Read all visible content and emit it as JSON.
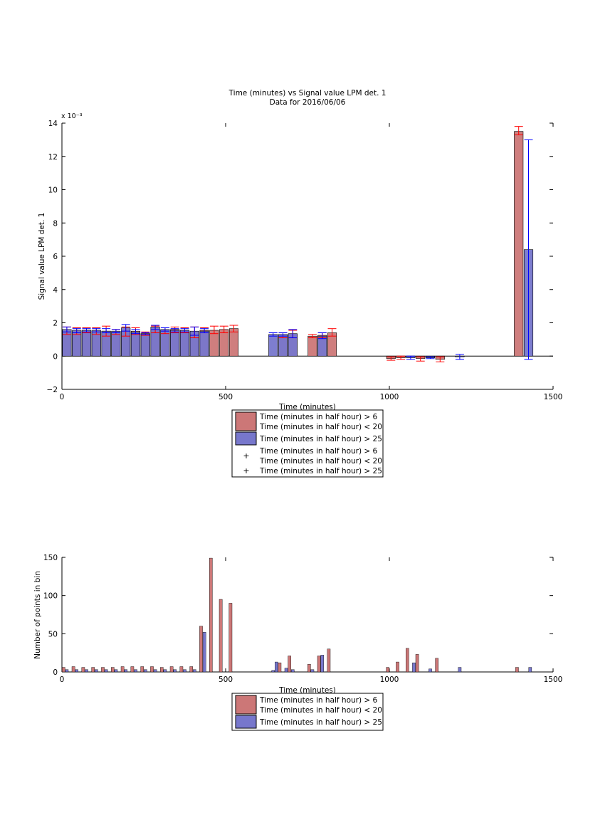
{
  "chart_data": [
    {
      "type": "bar",
      "title": "Time (minutes) vs Signal value LPM det. 1",
      "subtitle": "Data for 2016/06/06",
      "xlabel": "Time (minutes)",
      "ylabel": "Signal value LPM det. 1",
      "y_multiplier": "x 10⁻³",
      "xlim": [
        0,
        1500
      ],
      "ylim": [
        -2,
        14
      ],
      "x_ticks": [
        "0",
        "500",
        "1000",
        "1500"
      ],
      "y_ticks": [
        "−2",
        "0",
        "2",
        "4",
        "6",
        "8",
        "10",
        "12",
        "14"
      ],
      "x_tick_values": [
        0,
        500,
        1000,
        1500
      ],
      "y_tick_values": [
        -2,
        0,
        2,
        4,
        6,
        8,
        10,
        12,
        14
      ],
      "grid": false,
      "legend_position": "bottom-center",
      "legend": [
        {
          "kind": "swatch",
          "color": "#cc7777",
          "lines": [
            "Time (minutes in half hour) > 6",
            "Time (minutes in half hour) < 20"
          ]
        },
        {
          "kind": "swatch",
          "color": "#7777cc",
          "lines": [
            "Time (minutes in half hour) > 25"
          ]
        },
        {
          "kind": "marker",
          "color": "#ff0000",
          "lines": [
            "Time (minutes in half hour) > 6",
            "Time (minutes in half hour) < 20"
          ]
        },
        {
          "kind": "marker",
          "color": "#0000ff",
          "lines": [
            "Time (minutes in half hour) > 25"
          ]
        }
      ],
      "series": [
        {
          "name": "Time (minutes in half hour) > 6 Time (minutes in half hour) < 20",
          "color": "#cc7777",
          "error_color": "#ff0000",
          "points": [
            {
              "x": 15,
              "y": 1.5,
              "lo": 1.3,
              "hi": 1.75
            },
            {
              "x": 45,
              "y": 1.5,
              "lo": 1.3,
              "hi": 1.7
            },
            {
              "x": 75,
              "y": 1.55,
              "lo": 1.4,
              "hi": 1.7
            },
            {
              "x": 105,
              "y": 1.5,
              "lo": 1.3,
              "hi": 1.7
            },
            {
              "x": 135,
              "y": 1.5,
              "lo": 1.2,
              "hi": 1.8
            },
            {
              "x": 165,
              "y": 1.45,
              "lo": 1.3,
              "hi": 1.6
            },
            {
              "x": 195,
              "y": 1.5,
              "lo": 1.2,
              "hi": 1.75
            },
            {
              "x": 225,
              "y": 1.5,
              "lo": 1.3,
              "hi": 1.7
            },
            {
              "x": 255,
              "y": 1.35,
              "lo": 1.25,
              "hi": 1.45
            },
            {
              "x": 285,
              "y": 1.6,
              "lo": 1.4,
              "hi": 1.8
            },
            {
              "x": 315,
              "y": 1.55,
              "lo": 1.35,
              "hi": 1.7
            },
            {
              "x": 345,
              "y": 1.6,
              "lo": 1.4,
              "hi": 1.75
            },
            {
              "x": 375,
              "y": 1.55,
              "lo": 1.4,
              "hi": 1.7
            },
            {
              "x": 405,
              "y": 1.45,
              "lo": 1.1,
              "hi": 1.75
            },
            {
              "x": 435,
              "y": 1.55,
              "lo": 1.4,
              "hi": 1.7
            },
            {
              "x": 465,
              "y": 1.55,
              "lo": 1.35,
              "hi": 1.8
            },
            {
              "x": 495,
              "y": 1.6,
              "lo": 1.4,
              "hi": 1.8
            },
            {
              "x": 525,
              "y": 1.65,
              "lo": 1.45,
              "hi": 1.85
            },
            {
              "x": 675,
              "y": 1.25,
              "lo": 1.1,
              "hi": 1.4
            },
            {
              "x": 705,
              "y": 1.3,
              "lo": 1.1,
              "hi": 1.55
            },
            {
              "x": 765,
              "y": 1.2,
              "lo": 1.1,
              "hi": 1.3
            },
            {
              "x": 795,
              "y": 1.25,
              "lo": 1.1,
              "hi": 1.4
            },
            {
              "x": 825,
              "y": 1.4,
              "lo": 1.2,
              "hi": 1.65
            },
            {
              "x": 1005,
              "y": -0.15,
              "lo": -0.25,
              "hi": -0.05
            },
            {
              "x": 1035,
              "y": -0.1,
              "lo": -0.2,
              "hi": 0.0
            },
            {
              "x": 1095,
              "y": -0.15,
              "lo": -0.3,
              "hi": -0.05
            },
            {
              "x": 1155,
              "y": -0.2,
              "lo": -0.35,
              "hi": -0.05
            },
            {
              "x": 1395,
              "y": 13.5,
              "lo": 13.3,
              "hi": 13.8
            }
          ]
        },
        {
          "name": "Time (minutes in half hour) > 25",
          "color": "#7777cc",
          "error_color": "#0000ff",
          "points": [
            {
              "x": 15,
              "y": 1.6,
              "lo": 1.45,
              "hi": 1.75
            },
            {
              "x": 45,
              "y": 1.55,
              "lo": 1.4,
              "hi": 1.65
            },
            {
              "x": 75,
              "y": 1.55,
              "lo": 1.45,
              "hi": 1.65
            },
            {
              "x": 105,
              "y": 1.55,
              "lo": 1.45,
              "hi": 1.65
            },
            {
              "x": 135,
              "y": 1.5,
              "lo": 1.4,
              "hi": 1.65
            },
            {
              "x": 165,
              "y": 1.5,
              "lo": 1.4,
              "hi": 1.6
            },
            {
              "x": 195,
              "y": 1.7,
              "lo": 1.5,
              "hi": 1.9
            },
            {
              "x": 225,
              "y": 1.45,
              "lo": 1.35,
              "hi": 1.6
            },
            {
              "x": 255,
              "y": 1.35,
              "lo": 1.3,
              "hi": 1.4
            },
            {
              "x": 285,
              "y": 1.75,
              "lo": 1.6,
              "hi": 1.85
            },
            {
              "x": 315,
              "y": 1.6,
              "lo": 1.5,
              "hi": 1.7
            },
            {
              "x": 345,
              "y": 1.55,
              "lo": 1.45,
              "hi": 1.65
            },
            {
              "x": 375,
              "y": 1.55,
              "lo": 1.45,
              "hi": 1.65
            },
            {
              "x": 405,
              "y": 1.5,
              "lo": 1.25,
              "hi": 1.75
            },
            {
              "x": 435,
              "y": 1.5,
              "lo": 1.4,
              "hi": 1.65
            },
            {
              "x": 645,
              "y": 1.3,
              "lo": 1.2,
              "hi": 1.4
            },
            {
              "x": 675,
              "y": 1.3,
              "lo": 1.2,
              "hi": 1.4
            },
            {
              "x": 705,
              "y": 1.35,
              "lo": 1.1,
              "hi": 1.6
            },
            {
              "x": 795,
              "y": 1.2,
              "lo": 1.05,
              "hi": 1.4
            },
            {
              "x": 1065,
              "y": -0.1,
              "lo": -0.2,
              "hi": 0.0
            },
            {
              "x": 1125,
              "y": -0.1,
              "lo": -0.15,
              "hi": -0.05
            },
            {
              "x": 1215,
              "y": -0.05,
              "lo": -0.2,
              "hi": 0.1
            },
            {
              "x": 1425,
              "y": 6.4,
              "lo": -0.2,
              "hi": 13.0
            }
          ]
        }
      ]
    },
    {
      "type": "bar",
      "xlabel": "Time (minutes)",
      "ylabel": "Number of points in bin",
      "xlim": [
        0,
        1500
      ],
      "ylim": [
        0,
        150
      ],
      "x_ticks": [
        "0",
        "500",
        "1000",
        "1500"
      ],
      "y_ticks": [
        "0",
        "50",
        "100",
        "150"
      ],
      "x_tick_values": [
        0,
        500,
        1000,
        1500
      ],
      "y_tick_values": [
        0,
        50,
        100,
        150
      ],
      "grid": false,
      "legend_position": "bottom-center",
      "legend": [
        {
          "kind": "swatch",
          "color": "#cc7777",
          "lines": [
            "Time (minutes in half hour) > 6",
            "Time (minutes in half hour) < 20"
          ]
        },
        {
          "kind": "swatch",
          "color": "#7777cc",
          "lines": [
            "Time (minutes in half hour) > 25"
          ]
        }
      ],
      "series": [
        {
          "name": "Time (minutes in half hour) > 6 Time (minutes in half hour) < 20",
          "color": "#cc7777",
          "points": [
            {
              "x": 5,
              "y": 6
            },
            {
              "x": 35,
              "y": 7
            },
            {
              "x": 65,
              "y": 6
            },
            {
              "x": 95,
              "y": 6
            },
            {
              "x": 125,
              "y": 6
            },
            {
              "x": 155,
              "y": 6
            },
            {
              "x": 185,
              "y": 7
            },
            {
              "x": 215,
              "y": 7
            },
            {
              "x": 245,
              "y": 7
            },
            {
              "x": 275,
              "y": 7
            },
            {
              "x": 305,
              "y": 6
            },
            {
              "x": 335,
              "y": 7
            },
            {
              "x": 365,
              "y": 7
            },
            {
              "x": 395,
              "y": 7
            },
            {
              "x": 425,
              "y": 60
            },
            {
              "x": 455,
              "y": 149
            },
            {
              "x": 485,
              "y": 95
            },
            {
              "x": 515,
              "y": 90
            },
            {
              "x": 665,
              "y": 12
            },
            {
              "x": 695,
              "y": 21
            },
            {
              "x": 755,
              "y": 10
            },
            {
              "x": 785,
              "y": 21
            },
            {
              "x": 815,
              "y": 30
            },
            {
              "x": 995,
              "y": 6
            },
            {
              "x": 1025,
              "y": 13
            },
            {
              "x": 1055,
              "y": 31
            },
            {
              "x": 1085,
              "y": 23
            },
            {
              "x": 1145,
              "y": 18
            },
            {
              "x": 1390,
              "y": 6
            }
          ]
        },
        {
          "name": "Time (minutes in half hour) > 25",
          "color": "#7777cc",
          "points": [
            {
              "x": 15,
              "y": 3
            },
            {
              "x": 45,
              "y": 3
            },
            {
              "x": 75,
              "y": 3
            },
            {
              "x": 105,
              "y": 3
            },
            {
              "x": 135,
              "y": 3
            },
            {
              "x": 165,
              "y": 3
            },
            {
              "x": 195,
              "y": 3
            },
            {
              "x": 225,
              "y": 3
            },
            {
              "x": 255,
              "y": 3
            },
            {
              "x": 285,
              "y": 3
            },
            {
              "x": 315,
              "y": 3
            },
            {
              "x": 345,
              "y": 3
            },
            {
              "x": 375,
              "y": 3
            },
            {
              "x": 405,
              "y": 3
            },
            {
              "x": 435,
              "y": 52
            },
            {
              "x": 645,
              "y": 2
            },
            {
              "x": 655,
              "y": 13
            },
            {
              "x": 685,
              "y": 5
            },
            {
              "x": 705,
              "y": 3
            },
            {
              "x": 765,
              "y": 3
            },
            {
              "x": 795,
              "y": 22
            },
            {
              "x": 1075,
              "y": 12
            },
            {
              "x": 1125,
              "y": 4
            },
            {
              "x": 1215,
              "y": 6
            },
            {
              "x": 1430,
              "y": 6
            }
          ]
        }
      ]
    }
  ]
}
